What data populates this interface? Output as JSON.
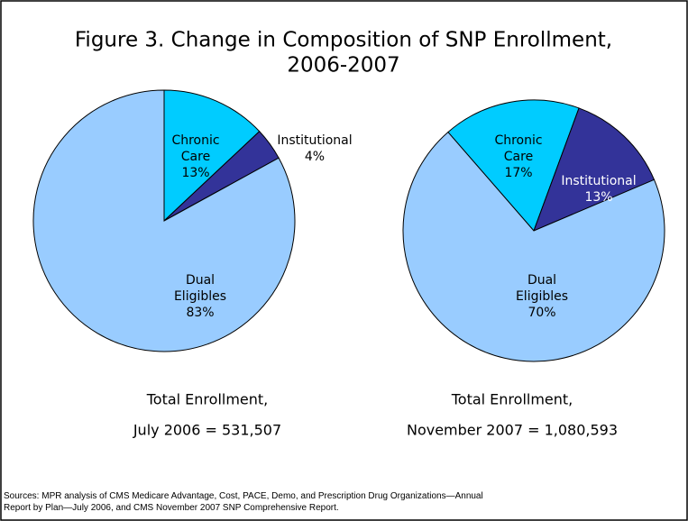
{
  "title": [
    "Figure 3.  Change in Composition of SNP Enrollment,",
    "2006-2007"
  ],
  "chart_data": [
    {
      "type": "pie",
      "categories": [
        "Chronic Care",
        "Institutional",
        "Dual Eligibles"
      ],
      "values": [
        13,
        4,
        83
      ],
      "value_labels": [
        "13%",
        "4%",
        "83%"
      ],
      "colors": [
        "#00ccff",
        "#333399",
        "#99ccff"
      ],
      "caption": [
        "Total Enrollment,",
        "July 2006 = 531,507"
      ]
    },
    {
      "type": "pie",
      "categories": [
        "Chronic Care",
        "Institutional",
        "Dual Eligibles"
      ],
      "values": [
        17,
        13,
        70
      ],
      "value_labels": [
        "17%",
        "13%",
        "70%"
      ],
      "colors": [
        "#00ccff",
        "#333399",
        "#99ccff"
      ],
      "caption": [
        "Total Enrollment,",
        "November 2007 = 1,080,593"
      ]
    }
  ],
  "source": [
    "Sources: MPR analysis of CMS Medicare Advantage, Cost, PACE, Demo, and Prescription Drug Organizations—Annual",
    "Report by Plan—July 2006, and CMS November 2007 SNP Comprehensive Report."
  ]
}
